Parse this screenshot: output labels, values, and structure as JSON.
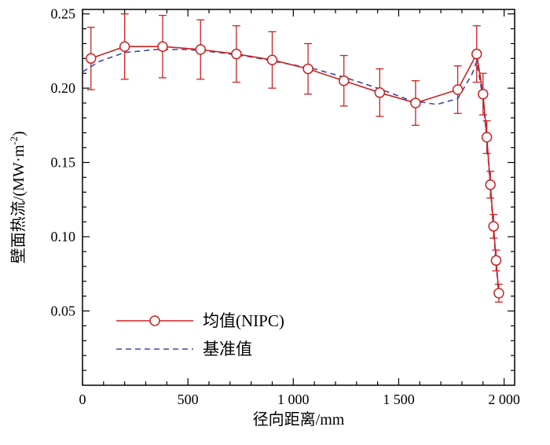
{
  "figure": {
    "background": "#ffffff",
    "frame_color": "#000000"
  },
  "chart_data": {
    "type": "line",
    "title": "",
    "xlabel": "径向距离/mm",
    "ylabel": "壁面热流/(MW·m⁻²)",
    "ylabel_parts": {
      "main": "壁面热流/(MW·m",
      "sup": "-2",
      "close": ")"
    },
    "xlim": [
      0,
      2050
    ],
    "ylim": [
      0,
      0.253
    ],
    "grid": false,
    "legend_position": "lower-left",
    "x_ticks": [
      {
        "value": 0,
        "label": "0"
      },
      {
        "value": 500,
        "label": "500"
      },
      {
        "value": 1000,
        "label": "1 000"
      },
      {
        "value": 1500,
        "label": "1 500"
      },
      {
        "value": 2000,
        "label": "2 000"
      }
    ],
    "y_ticks": [
      {
        "value": 0.05,
        "label": "0.05"
      },
      {
        "value": 0.1,
        "label": "0.10"
      },
      {
        "value": 0.15,
        "label": "0.15"
      },
      {
        "value": 0.2,
        "label": "0.20"
      },
      {
        "value": 0.25,
        "label": "0.25"
      }
    ],
    "x_minor_step": 100,
    "y_minor_step": 0.01,
    "series": [
      {
        "name": "均值(NIPC)",
        "type": "line",
        "marker": "circle",
        "color": "#cc2222",
        "x": [
          40,
          200,
          380,
          560,
          730,
          900,
          1070,
          1240,
          1410,
          1580,
          1780,
          1870,
          1900,
          1918,
          1935,
          1950,
          1962,
          1975
        ],
        "y": [
          0.22,
          0.228,
          0.228,
          0.226,
          0.223,
          0.219,
          0.213,
          0.205,
          0.197,
          0.19,
          0.199,
          0.223,
          0.196,
          0.167,
          0.135,
          0.107,
          0.084,
          0.062
        ],
        "yerr": [
          0.021,
          0.022,
          0.021,
          0.02,
          0.019,
          0.019,
          0.017,
          0.017,
          0.016,
          0.015,
          0.016,
          0.019,
          0.014,
          0.011,
          0.009,
          0.008,
          0.007,
          0.006
        ]
      },
      {
        "name": "基准值",
        "type": "dashed-line",
        "marker": "none",
        "color": "#3b4aa0",
        "x": [
          0,
          80,
          200,
          350,
          500,
          650,
          800,
          950,
          1100,
          1250,
          1400,
          1550,
          1680,
          1780,
          1850,
          1870,
          1900,
          1918,
          1935,
          1950,
          1962,
          1975
        ],
        "y": [
          0.211,
          0.218,
          0.224,
          0.226,
          0.226,
          0.224,
          0.221,
          0.217,
          0.213,
          0.207,
          0.2,
          0.192,
          0.189,
          0.193,
          0.21,
          0.218,
          0.193,
          0.165,
          0.133,
          0.104,
          0.082,
          0.06
        ]
      }
    ]
  }
}
